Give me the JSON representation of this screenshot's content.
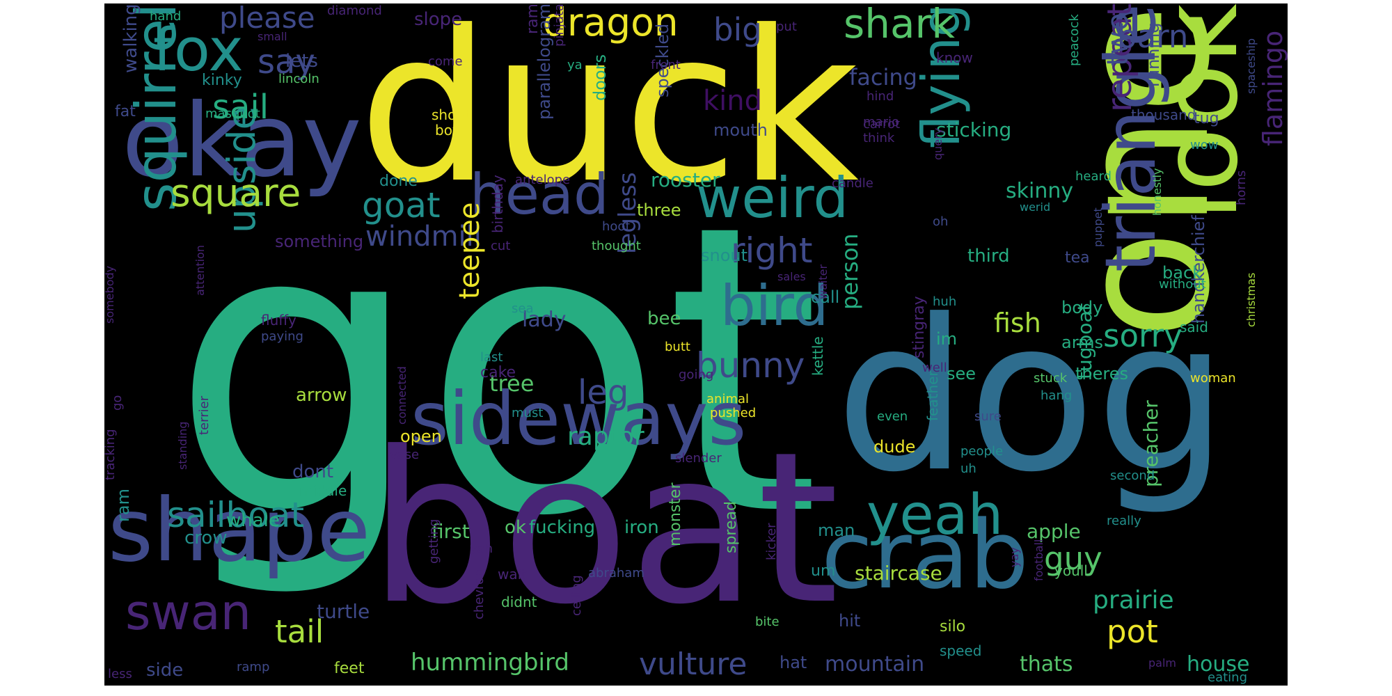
{
  "cloud": {
    "background": "#000000",
    "palette": {
      "yellow": "#ece52a",
      "lime": "#a8dd3e",
      "green": "#56c46a",
      "teal_green": "#26ad81",
      "teal": "#22908c",
      "blue": "#2e6d8e",
      "indigo": "#3f4a8a",
      "purple": "#482576",
      "dark_purple": "#3f0f62"
    },
    "words": [
      {
        "text": "got",
        "color": "teal_green"
      },
      {
        "text": "duck",
        "color": "yellow"
      },
      {
        "text": "one",
        "color": "lime"
      },
      {
        "text": "dog",
        "color": "blue"
      },
      {
        "text": "boat",
        "color": "purple"
      },
      {
        "text": "okay",
        "color": "indigo"
      },
      {
        "text": "look",
        "color": "lime"
      },
      {
        "text": "crab",
        "color": "blue"
      },
      {
        "text": "shape",
        "color": "indigo"
      },
      {
        "text": "sideways",
        "color": "indigo"
      },
      {
        "text": "triangle",
        "color": "indigo"
      },
      {
        "text": "squirrel",
        "color": "teal"
      },
      {
        "text": "fox",
        "color": "teal"
      },
      {
        "text": "head",
        "color": "indigo"
      },
      {
        "text": "weird",
        "color": "teal"
      },
      {
        "text": "bird",
        "color": "blue"
      },
      {
        "text": "yeah",
        "color": "teal"
      },
      {
        "text": "swan",
        "color": "purple"
      },
      {
        "text": "flying",
        "color": "teal"
      },
      {
        "text": "upside",
        "color": "teal"
      },
      {
        "text": "square",
        "color": "lime"
      },
      {
        "text": "dragon",
        "color": "yellow"
      },
      {
        "text": "shark",
        "color": "green"
      },
      {
        "text": "sailboat",
        "color": "teal"
      },
      {
        "text": "goat",
        "color": "teal"
      },
      {
        "text": "bunny",
        "color": "indigo"
      },
      {
        "text": "right",
        "color": "indigo"
      },
      {
        "text": "repeat",
        "color": "purple"
      },
      {
        "text": "flamingo",
        "color": "purple"
      },
      {
        "text": "windmill",
        "color": "indigo"
      },
      {
        "text": "big",
        "color": "indigo"
      },
      {
        "text": "barn",
        "color": "indigo"
      },
      {
        "text": "two",
        "color": "indigo"
      },
      {
        "text": "sail",
        "color": "teal_green"
      },
      {
        "text": "say",
        "color": "indigo"
      },
      {
        "text": "please",
        "color": "indigo"
      },
      {
        "text": "tail",
        "color": "lime"
      },
      {
        "text": "pot",
        "color": "yellow"
      },
      {
        "text": "guy",
        "color": "green"
      },
      {
        "text": "sorry",
        "color": "teal_green"
      },
      {
        "text": "vulture",
        "color": "indigo"
      },
      {
        "text": "hummingbird",
        "color": "green"
      },
      {
        "text": "leg",
        "color": "indigo"
      },
      {
        "text": "person",
        "color": "teal_green"
      },
      {
        "text": "teepee",
        "color": "yellow"
      },
      {
        "text": "raptor",
        "color": "teal_green"
      },
      {
        "text": "prairie",
        "color": "teal_green"
      },
      {
        "text": "fish",
        "color": "lime"
      },
      {
        "text": "mountain",
        "color": "indigo"
      },
      {
        "text": "house",
        "color": "teal_green"
      },
      {
        "text": "thats",
        "color": "green"
      },
      {
        "text": "skinny",
        "color": "teal_green"
      },
      {
        "text": "kind",
        "color": "dark_purple"
      },
      {
        "text": "facing",
        "color": "indigo"
      },
      {
        "text": "rooster",
        "color": "teal_green"
      },
      {
        "text": "lady",
        "color": "indigo"
      },
      {
        "text": "legless",
        "color": "indigo"
      },
      {
        "text": "tree",
        "color": "green"
      },
      {
        "text": "bee",
        "color": "green"
      },
      {
        "text": "handkerchief",
        "color": "indigo"
      },
      {
        "text": "speckled",
        "color": "indigo"
      },
      {
        "text": "doors",
        "color": "teal_green"
      },
      {
        "text": "parallelogram",
        "color": "indigo"
      },
      {
        "text": "sticking",
        "color": "teal_green"
      },
      {
        "text": "running",
        "color": "indigo"
      },
      {
        "text": "tugboat",
        "color": "teal_green"
      },
      {
        "text": "staircase",
        "color": "lime"
      },
      {
        "text": "apple",
        "color": "green"
      },
      {
        "text": "preacher",
        "color": "green"
      },
      {
        "text": "turtle",
        "color": "indigo"
      },
      {
        "text": "side",
        "color": "indigo"
      },
      {
        "text": "whale",
        "color": "teal_green"
      },
      {
        "text": "crow",
        "color": "teal"
      },
      {
        "text": "first",
        "color": "green"
      },
      {
        "text": "ok",
        "color": "green"
      },
      {
        "text": "fucking",
        "color": "teal_green"
      },
      {
        "text": "iron",
        "color": "teal_green"
      },
      {
        "text": "ram",
        "color": "teal"
      },
      {
        "text": "arrow",
        "color": "lime"
      },
      {
        "text": "open",
        "color": "yellow"
      },
      {
        "text": "dont",
        "color": "indigo"
      },
      {
        "text": "middle",
        "color": "teal_green"
      },
      {
        "text": "mouth",
        "color": "indigo"
      },
      {
        "text": "done",
        "color": "teal"
      },
      {
        "text": "something",
        "color": "purple"
      },
      {
        "text": "lets",
        "color": "indigo"
      },
      {
        "text": "walking",
        "color": "indigo"
      },
      {
        "text": "kinky",
        "color": "teal"
      },
      {
        "text": "fat",
        "color": "indigo"
      },
      {
        "text": "masquot",
        "color": "teal_green"
      },
      {
        "text": "lincoln",
        "color": "green"
      },
      {
        "text": "slope",
        "color": "purple"
      },
      {
        "text": "ram",
        "color": "purple"
      },
      {
        "text": "come",
        "color": "purple"
      },
      {
        "text": "pinjata",
        "color": "purple"
      },
      {
        "text": "ya",
        "color": "teal_green"
      },
      {
        "text": "front",
        "color": "purple"
      },
      {
        "text": "shoot",
        "color": "yellow"
      },
      {
        "text": "box",
        "color": "yellow"
      },
      {
        "text": "antelope",
        "color": "purple"
      },
      {
        "text": "three",
        "color": "lime"
      },
      {
        "text": "hoof",
        "color": "indigo"
      },
      {
        "text": "thought",
        "color": "green"
      },
      {
        "text": "snout",
        "color": "teal"
      },
      {
        "text": "call",
        "color": "teal"
      },
      {
        "text": "candle",
        "color": "purple"
      },
      {
        "text": "carrot",
        "color": "purple"
      },
      {
        "text": "mario",
        "color": "purple"
      },
      {
        "text": "think",
        "color": "purple"
      },
      {
        "text": "know",
        "color": "purple"
      },
      {
        "text": "hind",
        "color": "purple"
      },
      {
        "text": "put",
        "color": "purple"
      },
      {
        "text": "peacock",
        "color": "teal_green"
      },
      {
        "text": "thousand",
        "color": "indigo"
      },
      {
        "text": "tug",
        "color": "indigo"
      },
      {
        "text": "wow",
        "color": "teal"
      },
      {
        "text": "horns",
        "color": "purple"
      },
      {
        "text": "spaceship",
        "color": "indigo"
      },
      {
        "text": "query",
        "color": "purple"
      },
      {
        "text": "heard",
        "color": "teal_green"
      },
      {
        "text": "werid",
        "color": "teal"
      },
      {
        "text": "oh",
        "color": "indigo"
      },
      {
        "text": "honestly",
        "color": "green"
      },
      {
        "text": "puppet",
        "color": "indigo"
      },
      {
        "text": "third",
        "color": "teal_green"
      },
      {
        "text": "tea",
        "color": "indigo"
      },
      {
        "text": "back",
        "color": "teal_green"
      },
      {
        "text": "without",
        "color": "teal_green"
      },
      {
        "text": "body",
        "color": "teal_green"
      },
      {
        "text": "said",
        "color": "teal_green"
      },
      {
        "text": "im",
        "color": "teal_green"
      },
      {
        "text": "arms",
        "color": "teal_green"
      },
      {
        "text": "theres",
        "color": "teal_green"
      },
      {
        "text": "see",
        "color": "teal_green"
      },
      {
        "text": "stingray",
        "color": "purple"
      },
      {
        "text": "huh",
        "color": "teal"
      },
      {
        "text": "sales",
        "color": "purple"
      },
      {
        "text": "waiter",
        "color": "purple"
      },
      {
        "text": "birthday",
        "color": "purple"
      },
      {
        "text": "cut",
        "color": "purple"
      },
      {
        "text": "sea",
        "color": "teal"
      },
      {
        "text": "last",
        "color": "teal"
      },
      {
        "text": "going",
        "color": "purple"
      },
      {
        "text": "cake",
        "color": "purple"
      },
      {
        "text": "butt",
        "color": "yellow"
      },
      {
        "text": "animal",
        "color": "yellow"
      },
      {
        "text": "pushed",
        "color": "yellow"
      },
      {
        "text": "must",
        "color": "teal"
      },
      {
        "text": "well",
        "color": "purple"
      },
      {
        "text": "stuck",
        "color": "green"
      },
      {
        "text": "woman",
        "color": "yellow"
      },
      {
        "text": "hang",
        "color": "teal"
      },
      {
        "text": "christmas",
        "color": "lime"
      },
      {
        "text": "kettle",
        "color": "teal_green"
      },
      {
        "text": "even",
        "color": "teal_green"
      },
      {
        "text": "sure",
        "color": "indigo"
      },
      {
        "text": "people",
        "color": "teal"
      },
      {
        "text": "uh",
        "color": "teal"
      },
      {
        "text": "dude",
        "color": "yellow"
      },
      {
        "text": "feather",
        "color": "teal"
      },
      {
        "text": "second",
        "color": "teal"
      },
      {
        "text": "really",
        "color": "teal"
      },
      {
        "text": "man",
        "color": "teal"
      },
      {
        "text": "monster",
        "color": "green"
      },
      {
        "text": "spread",
        "color": "green"
      },
      {
        "text": "um",
        "color": "teal"
      },
      {
        "text": "hit",
        "color": "indigo"
      },
      {
        "text": "silo",
        "color": "lime"
      },
      {
        "text": "speed",
        "color": "teal"
      },
      {
        "text": "hat",
        "color": "indigo"
      },
      {
        "text": "kicker",
        "color": "purple"
      },
      {
        "text": "yay",
        "color": "purple"
      },
      {
        "text": "football",
        "color": "purple"
      },
      {
        "text": "youll",
        "color": "green"
      },
      {
        "text": "palm",
        "color": "purple"
      },
      {
        "text": "eating",
        "color": "teal"
      },
      {
        "text": "wait",
        "color": "purple"
      },
      {
        "text": "didnt",
        "color": "green"
      },
      {
        "text": "abraham",
        "color": "indigo"
      },
      {
        "text": "bite",
        "color": "green"
      },
      {
        "text": "chevron",
        "color": "purple"
      },
      {
        "text": "yah",
        "color": "purple"
      },
      {
        "text": "getting",
        "color": "purple"
      },
      {
        "text": "ceiling",
        "color": "purple"
      },
      {
        "text": "feet",
        "color": "lime"
      },
      {
        "text": "ramp",
        "color": "indigo"
      },
      {
        "text": "less",
        "color": "purple"
      },
      {
        "text": "tracking",
        "color": "purple"
      },
      {
        "text": "go",
        "color": "purple"
      },
      {
        "text": "standing",
        "color": "purple"
      },
      {
        "text": "terrier",
        "color": "purple"
      },
      {
        "text": "somebody",
        "color": "purple"
      },
      {
        "text": "attention",
        "color": "purple"
      },
      {
        "text": "fluffy",
        "color": "purple"
      },
      {
        "text": "paying",
        "color": "indigo"
      },
      {
        "text": "vase",
        "color": "purple"
      },
      {
        "text": "slender",
        "color": "purple"
      },
      {
        "text": "connected",
        "color": "purple"
      },
      {
        "text": "hand",
        "color": "teal_green"
      },
      {
        "text": "small",
        "color": "purple"
      },
      {
        "text": "diamond",
        "color": "purple"
      }
    ]
  }
}
